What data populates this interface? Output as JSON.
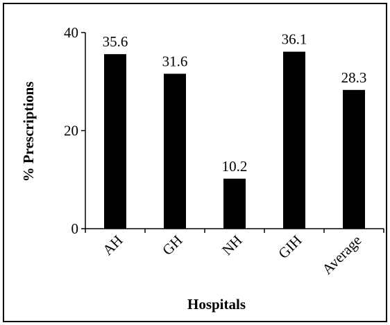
{
  "chart_data": {
    "type": "bar",
    "categories": [
      "AH",
      "GH",
      "NH",
      "GIH",
      "Average"
    ],
    "values": [
      35.6,
      31.6,
      10.2,
      36.1,
      28.3
    ],
    "data_labels": [
      "35.6",
      "31.6",
      "10.2",
      "36.1",
      "28.3"
    ],
    "xlabel": "Hospitals",
    "ylabel": "% Prescriptions",
    "ylim": [
      0,
      40
    ],
    "yticks": [
      0,
      20,
      40
    ],
    "ytick_labels": [
      "0",
      "20",
      "40"
    ],
    "grid": false,
    "legend": "none",
    "bar_color": "#000000",
    "border_color": "#000000"
  }
}
